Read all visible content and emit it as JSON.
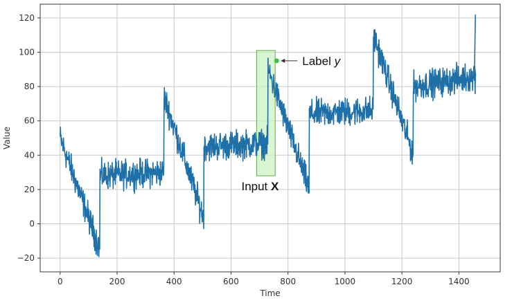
{
  "chart_data": {
    "type": "line",
    "xlabel": "Time",
    "ylabel": "Value",
    "xlim": [
      -70,
      1545
    ],
    "ylim": [
      -28,
      128
    ],
    "xticks": [
      0,
      200,
      400,
      600,
      800,
      1000,
      1200,
      1400
    ],
    "yticks": [
      -20,
      0,
      20,
      40,
      60,
      80,
      100,
      120
    ],
    "grid": true,
    "line_color": "#1f6fa8",
    "segments": [
      {
        "start": 0,
        "end": 140,
        "level_start": 50,
        "level_end": -15,
        "noise": 5
      },
      {
        "start": 140,
        "end": 365,
        "level_start": 28,
        "level_end": 30,
        "noise": 5
      },
      {
        "start": 365,
        "end": 505,
        "level_start": 74,
        "level_end": 3,
        "noise": 5
      },
      {
        "start": 505,
        "end": 730,
        "level_start": 45,
        "level_end": 47,
        "noise": 5
      },
      {
        "start": 730,
        "end": 875,
        "level_start": 90,
        "level_end": 20,
        "noise": 5
      },
      {
        "start": 875,
        "end": 1100,
        "level_start": 64,
        "level_end": 66,
        "noise": 5
      },
      {
        "start": 1100,
        "end": 1240,
        "level_start": 110,
        "level_end": 40,
        "noise": 5
      },
      {
        "start": 1240,
        "end": 1460,
        "level_start": 80,
        "level_end": 86,
        "noise": 5
      }
    ],
    "final_spike": 122,
    "input_window": {
      "x_start": 690,
      "x_end": 755,
      "y_start": 28,
      "y_end": 101,
      "color": "#ccf2c2",
      "edge": "#5fae4d"
    },
    "label_point": {
      "x": 760,
      "y": 95,
      "color": "#3ec24a"
    },
    "annotations": {
      "label_prefix": "Label ",
      "label_var": "y",
      "input_prefix": "Input ",
      "input_var": "X"
    }
  }
}
